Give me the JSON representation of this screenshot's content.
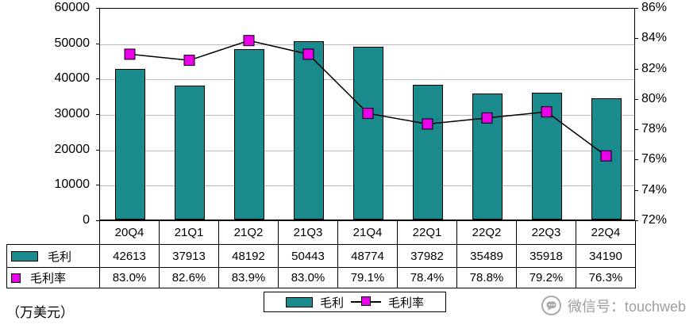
{
  "chart_data": {
    "type": "bar",
    "subtype": "bar+line-combo",
    "categories": [
      "20Q4",
      "21Q1",
      "21Q2",
      "21Q3",
      "21Q4",
      "22Q1",
      "22Q2",
      "22Q3",
      "22Q4"
    ],
    "series": [
      {
        "name": "毛利",
        "type": "bar",
        "axis": "left",
        "values": [
          42613,
          37913,
          48192,
          50443,
          48774,
          37982,
          35489,
          35918,
          34190
        ],
        "color": "#1a8a8c"
      },
      {
        "name": "毛利率",
        "type": "line",
        "axis": "right",
        "unit": "%",
        "values": [
          83.0,
          82.6,
          83.9,
          83.0,
          79.1,
          78.4,
          78.8,
          79.2,
          76.3
        ],
        "line_color": "#000000",
        "marker_color": "#e800e8"
      }
    ],
    "title": "",
    "xlabel": "",
    "ylabel": "",
    "left_axis": {
      "min": 0,
      "max": 60000,
      "step": 10000
    },
    "right_axis": {
      "min": 72,
      "max": 86,
      "step": 2,
      "suffix": "%"
    },
    "grid": true,
    "legend_position": "bottom"
  },
  "table": {
    "rows": [
      {
        "label": "毛利",
        "values": [
          "42613",
          "37913",
          "48192",
          "50443",
          "48774",
          "37982",
          "35489",
          "35918",
          "34190"
        ]
      },
      {
        "label": "毛利率",
        "values": [
          "83.0%",
          "82.6%",
          "83.9%",
          "83.0%",
          "79.1%",
          "78.4%",
          "78.8%",
          "79.2%",
          "76.3%"
        ]
      }
    ]
  },
  "legend": {
    "items": [
      {
        "label": "毛利"
      },
      {
        "label": "毛利率"
      }
    ]
  },
  "footer": {
    "unit_note": "（万美元）",
    "watermark": "微信号：touchweb"
  }
}
